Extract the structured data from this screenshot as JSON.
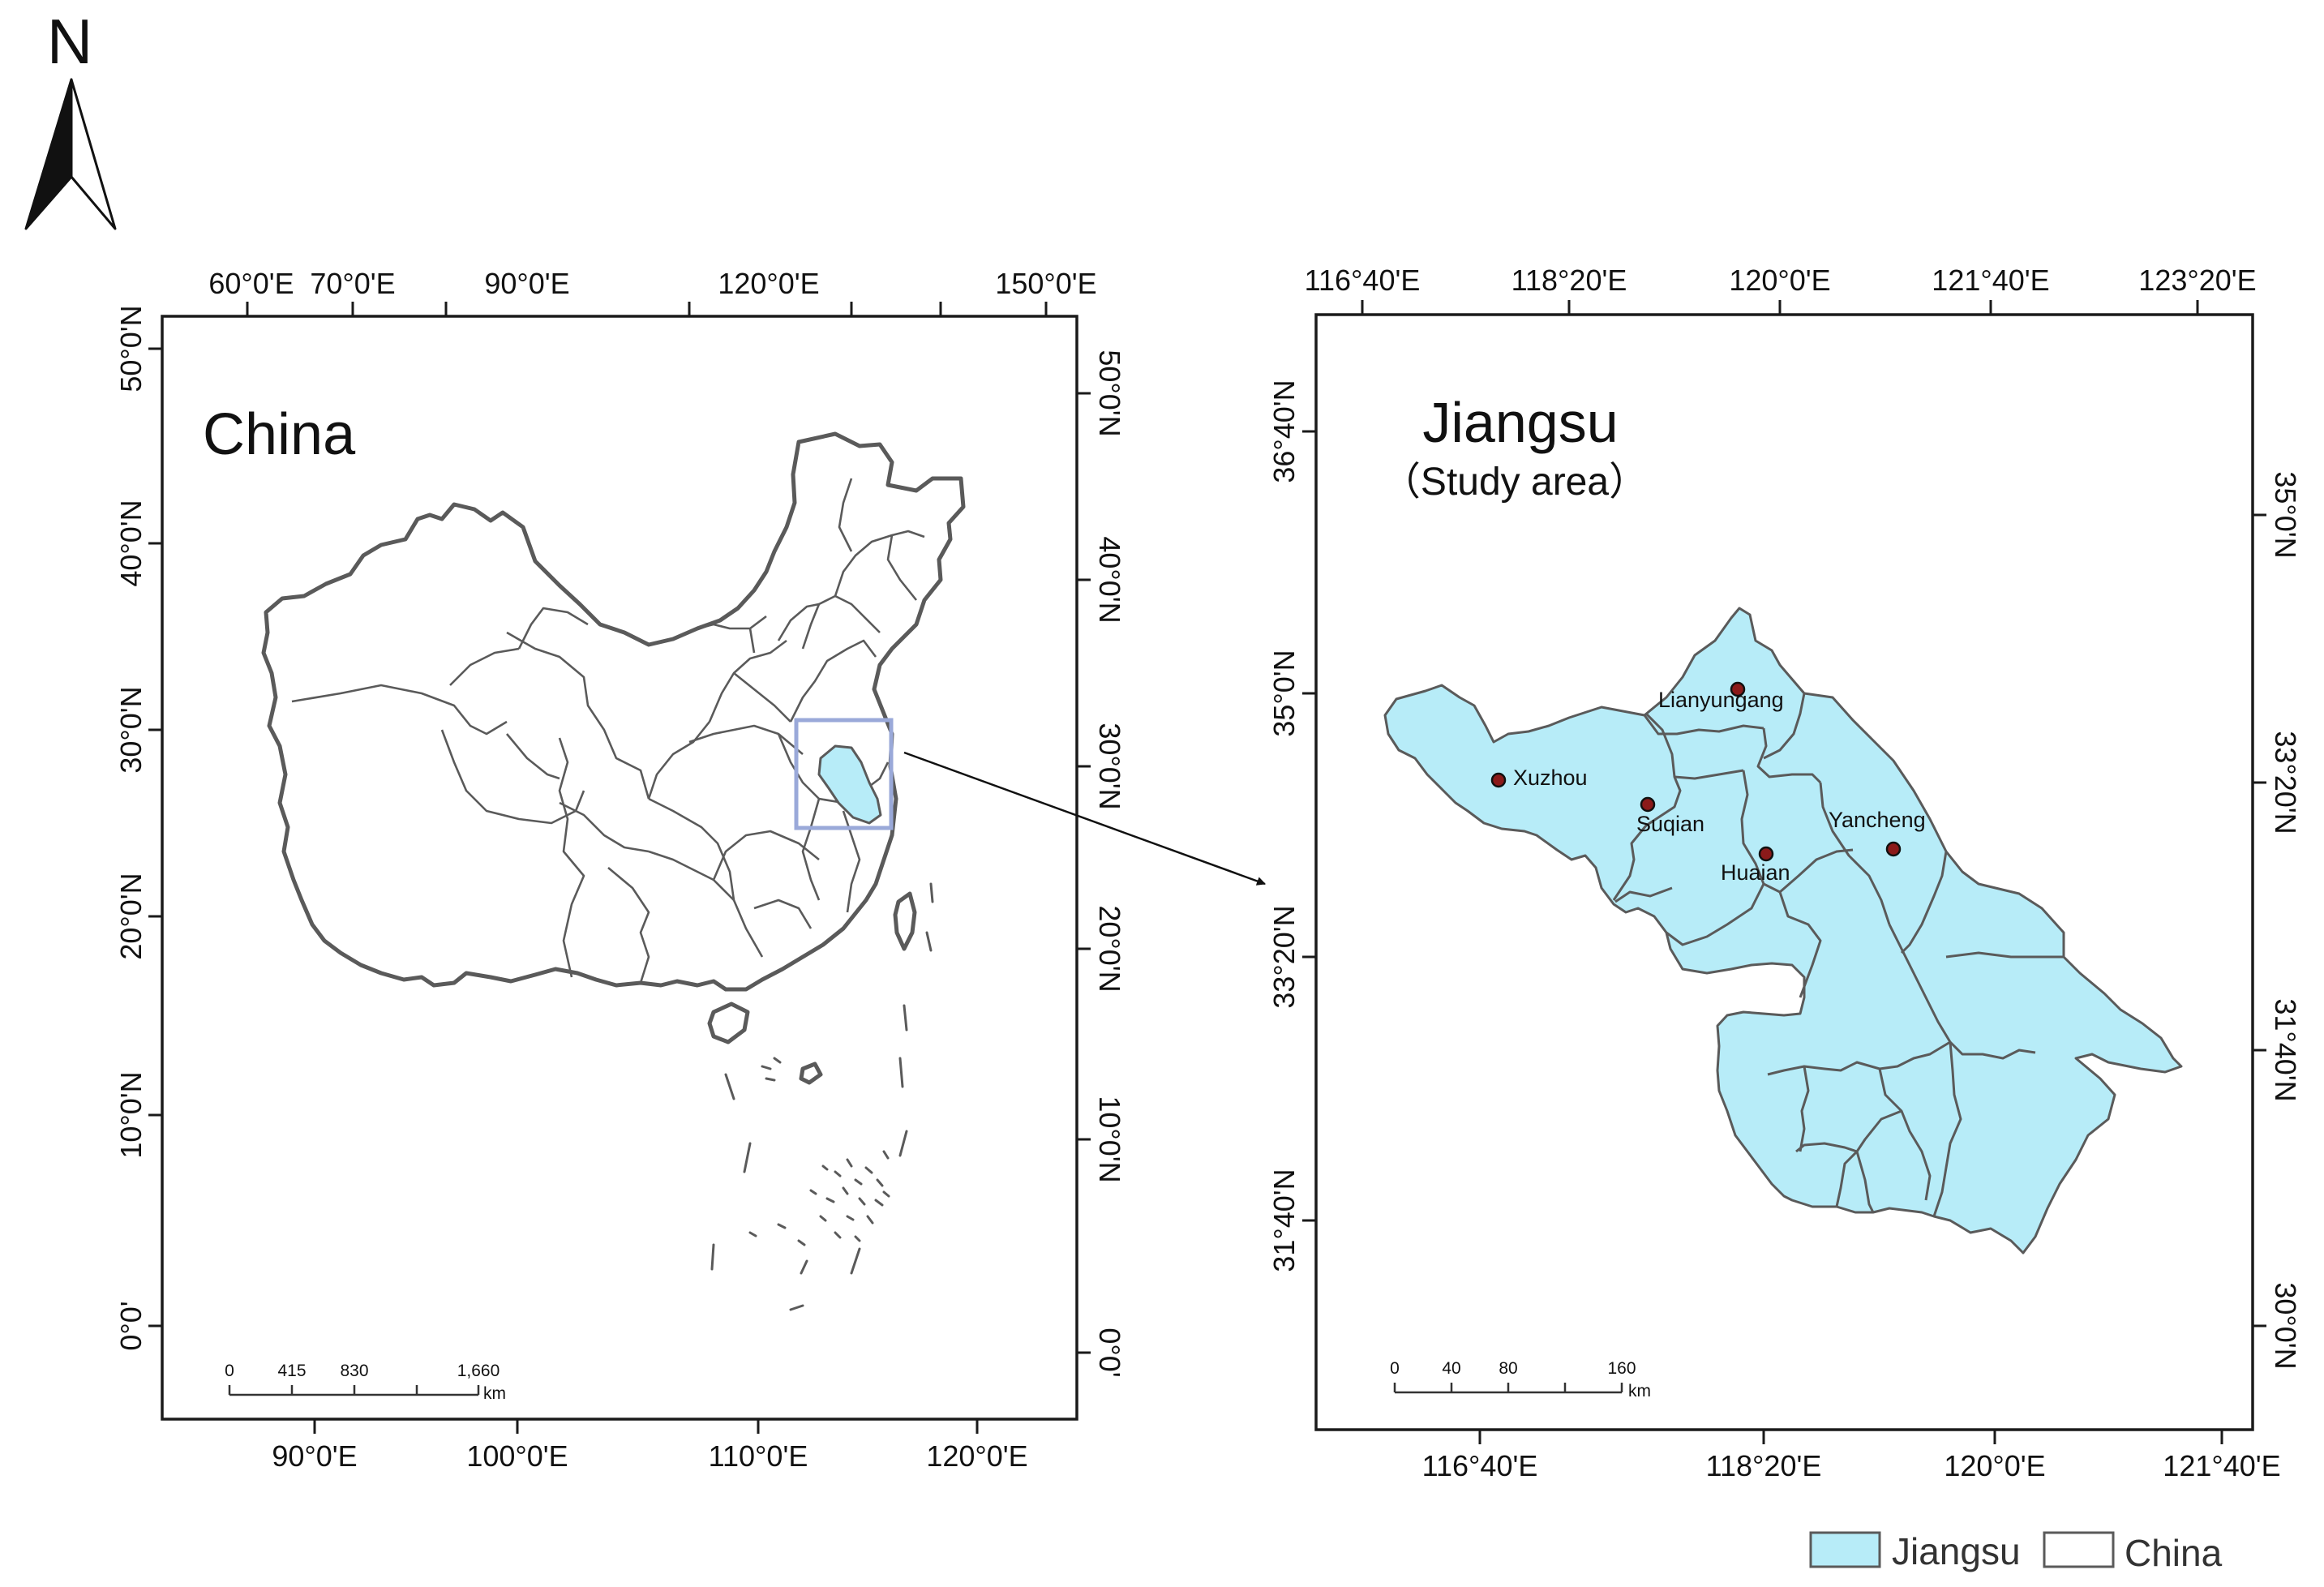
{
  "north_arrow": {
    "label": "N"
  },
  "china_map": {
    "title": "China",
    "top_ticks": [
      "60°0'E",
      "70°0'E",
      "90°0'E",
      "120°0'E",
      "150°0'E"
    ],
    "bottom_ticks": [
      "90°0'E",
      "100°0'E",
      "110°0'E",
      "120°0'E"
    ],
    "left_ticks": [
      "50°0'N",
      "40°0'N",
      "30°0'N",
      "20°0'N",
      "10°0'N",
      "0°0'"
    ],
    "right_ticks": [
      "50°0'N",
      "40°0'N",
      "30°0'N",
      "20°0'N",
      "10°0'N",
      "0°0'"
    ],
    "scale": {
      "labels": [
        "0",
        "415",
        "830",
        "1,660"
      ],
      "unit": "km"
    }
  },
  "jiangsu_map": {
    "title": "Jiangsu",
    "subtitle": "（Study area）",
    "top_ticks": [
      "116°40'E",
      "118°20'E",
      "120°0'E",
      "121°40'E",
      "123°20'E"
    ],
    "bottom_ticks": [
      "116°40'E",
      "118°20'E",
      "120°0'E",
      "121°40'E"
    ],
    "left_ticks": [
      "36°40'N",
      "35°0'N",
      "33°20'N",
      "31°40'N"
    ],
    "right_ticks": [
      "35°0'N",
      "33°20'N",
      "31°40'N",
      "30°0'N"
    ],
    "cities": [
      "Lianyungang",
      "Xuzhou",
      "Suqian",
      "Yancheng",
      "Huaian"
    ],
    "scale": {
      "labels": [
        "0",
        "40",
        "80",
        "160"
      ],
      "unit": "km"
    }
  },
  "legend": {
    "items": [
      {
        "label": "Jiangsu",
        "color": "#b7ecf8"
      },
      {
        "label": "China",
        "color": "#ffffff"
      }
    ]
  },
  "colors": {
    "jiangsu_fill": "#b7ecf8",
    "outline": "#5a5a5a",
    "inset_box": "#9aa9d9",
    "city_dot": "#8b1a1a"
  }
}
